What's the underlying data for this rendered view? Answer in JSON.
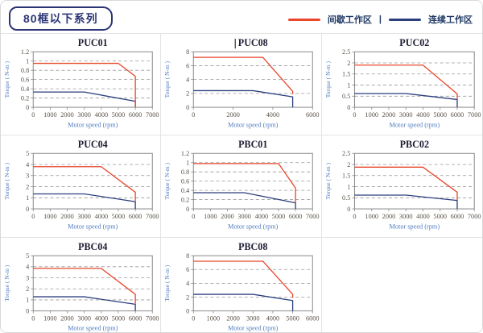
{
  "page": {
    "title": "80框以下系列"
  },
  "legend": {
    "items": [
      {
        "key": "intermittent-zone",
        "label": "间歇工作区",
        "color": "#e8472b"
      },
      {
        "key": "continuous-zone",
        "label": "连续工作区",
        "color": "#2b3f7e"
      }
    ],
    "separator": "|"
  },
  "colors": {
    "red_line": "#e8472b",
    "blue_line": "#2b3f7e",
    "plot_border": "#8a8a8a",
    "gridline": "#999999",
    "tick_text": "#5a5248",
    "axis_label_text": "#4f7cc0",
    "chart_title_text": "#1d1d33",
    "cell_divider": "#e4e4e4",
    "pill_navy": "#2b3575"
  },
  "chart_data": [
    {
      "type": "line",
      "title": "PUC01",
      "caret": false,
      "xlabel": "Motor speed (rpm)",
      "ylabel": "Torque ( N-m )",
      "xlim": [
        0,
        7000
      ],
      "ylim": [
        0,
        1.2
      ],
      "xticks": [
        0,
        1000,
        2000,
        3000,
        4000,
        5000,
        6000,
        7000
      ],
      "xtick_labels": [
        "0",
        "1000",
        "2000",
        "3000",
        "4000",
        "5000",
        "6000",
        "7000"
      ],
      "yticks": [
        0,
        0.2,
        0.4,
        0.6,
        0.8,
        1,
        1.2
      ],
      "ytick_labels": [
        "0",
        "0.2",
        "0.4",
        "0.6",
        "0.8",
        "1",
        "1.2"
      ],
      "series": [
        {
          "key": "intermittent-zone",
          "name": "间歇工作区",
          "color": "#e8472b",
          "points": [
            [
              0,
              0.95
            ],
            [
              5000,
              0.95
            ],
            [
              6000,
              0.67
            ],
            [
              6000,
              0
            ]
          ]
        },
        {
          "key": "continuous-zone",
          "name": "连续工作区",
          "color": "#2b3f7e",
          "points": [
            [
              0,
              0.33
            ],
            [
              3000,
              0.33
            ],
            [
              6000,
              0.13
            ],
            [
              6000,
              0
            ]
          ]
        }
      ]
    },
    {
      "type": "line",
      "title": "PUC08",
      "caret": true,
      "xlabel": "Motor speed (rpm)",
      "ylabel": "Torque ( N-m )",
      "xlim": [
        0,
        6000
      ],
      "ylim": [
        0,
        8
      ],
      "xticks": [
        0,
        2000,
        4000,
        6000
      ],
      "xtick_labels": [
        "0",
        "2000",
        "4000",
        "6000"
      ],
      "yticks": [
        0,
        2,
        4,
        6,
        8
      ],
      "ytick_labels": [
        "0",
        "2",
        "4",
        "6",
        "8"
      ],
      "series": [
        {
          "key": "intermittent-zone",
          "name": "间歇工作区",
          "color": "#e8472b",
          "points": [
            [
              0,
              7.2
            ],
            [
              3500,
              7.2
            ],
            [
              5000,
              2.3
            ],
            [
              5000,
              1.9
            ]
          ]
        },
        {
          "key": "continuous-zone",
          "name": "连续工作区",
          "color": "#2b3f7e",
          "points": [
            [
              0,
              2.4
            ],
            [
              3000,
              2.4
            ],
            [
              5000,
              1.5
            ],
            [
              5000,
              0
            ]
          ]
        }
      ]
    },
    {
      "type": "line",
      "title": "PUC02",
      "caret": false,
      "xlabel": "Motor speed (rpm)",
      "ylabel": "Torque ( N-m )",
      "xlim": [
        0,
        7000
      ],
      "ylim": [
        0,
        2.5
      ],
      "xticks": [
        0,
        1000,
        2000,
        3000,
        4000,
        5000,
        6000,
        7000
      ],
      "xtick_labels": [
        "0",
        "1000",
        "2000",
        "3000",
        "4000",
        "5000",
        "6000",
        "7000"
      ],
      "yticks": [
        0,
        0.5,
        1,
        1.5,
        2,
        2.5
      ],
      "ytick_labels": [
        "0",
        "0.5",
        "1",
        "1.5",
        "2",
        "2.5"
      ],
      "series": [
        {
          "key": "intermittent-zone",
          "name": "间歇工作区",
          "color": "#e8472b",
          "points": [
            [
              0,
              1.9
            ],
            [
              4000,
              1.9
            ],
            [
              6000,
              0.6
            ],
            [
              6000,
              0.35
            ]
          ]
        },
        {
          "key": "continuous-zone",
          "name": "连续工作区",
          "color": "#2b3f7e",
          "points": [
            [
              0,
              0.62
            ],
            [
              3000,
              0.62
            ],
            [
              6000,
              0.35
            ],
            [
              6000,
              0
            ]
          ]
        }
      ]
    },
    {
      "type": "line",
      "title": "PUC04",
      "caret": false,
      "xlabel": "Motor speed (rpm)",
      "ylabel": "Torque ( N-m )",
      "xlim": [
        0,
        7000
      ],
      "ylim": [
        0,
        5
      ],
      "xticks": [
        0,
        1000,
        2000,
        3000,
        4000,
        5000,
        6000,
        7000
      ],
      "xtick_labels": [
        "0",
        "1000",
        "2000",
        "3000",
        "4000",
        "5000",
        "6000",
        "7000"
      ],
      "yticks": [
        0,
        1,
        2,
        3,
        4,
        5
      ],
      "ytick_labels": [
        "0",
        "1",
        "2",
        "3",
        "4",
        "5"
      ],
      "series": [
        {
          "key": "intermittent-zone",
          "name": "间歇工作区",
          "color": "#e8472b",
          "points": [
            [
              0,
              3.8
            ],
            [
              4000,
              3.8
            ],
            [
              6000,
              1.5
            ],
            [
              6000,
              0.7
            ]
          ]
        },
        {
          "key": "continuous-zone",
          "name": "连续工作区",
          "color": "#2b3f7e",
          "points": [
            [
              0,
              1.35
            ],
            [
              3000,
              1.35
            ],
            [
              6000,
              0.65
            ],
            [
              6000,
              0
            ]
          ]
        }
      ]
    },
    {
      "type": "line",
      "title": "PBC01",
      "caret": false,
      "xlabel": "Motor speed (rpm)",
      "ylabel": "Torque ( N-m )",
      "xlim": [
        0,
        7000
      ],
      "ylim": [
        0,
        1.2
      ],
      "xticks": [
        0,
        1000,
        2000,
        3000,
        4000,
        5000,
        6000,
        7000
      ],
      "xtick_labels": [
        "0",
        "1000",
        "2000",
        "3000",
        "4000",
        "5000",
        "6000",
        "7000"
      ],
      "yticks": [
        0,
        0.2,
        0.4,
        0.6,
        0.8,
        1,
        1.2
      ],
      "ytick_labels": [
        "0",
        "0.2",
        "0.4",
        "0.6",
        "0.8",
        "1",
        "1.2"
      ],
      "series": [
        {
          "key": "intermittent-zone",
          "name": "间歇工作区",
          "color": "#e8472b",
          "points": [
            [
              0,
              0.98
            ],
            [
              5000,
              0.98
            ],
            [
              6000,
              0.45
            ],
            [
              6000,
              0.13
            ]
          ]
        },
        {
          "key": "continuous-zone",
          "name": "连续工作区",
          "color": "#2b3f7e",
          "points": [
            [
              0,
              0.35
            ],
            [
              3000,
              0.35
            ],
            [
              6000,
              0.13
            ],
            [
              6000,
              0
            ]
          ]
        }
      ]
    },
    {
      "type": "line",
      "title": "PBC02",
      "caret": false,
      "xlabel": "Motor speed (rpm)",
      "ylabel": "Torque ( N-m )",
      "xlim": [
        0,
        7000
      ],
      "ylim": [
        0,
        2.5
      ],
      "xticks": [
        0,
        1000,
        2000,
        3000,
        4000,
        5000,
        6000,
        7000
      ],
      "xtick_labels": [
        "0",
        "1000",
        "2000",
        "3000",
        "4000",
        "5000",
        "6000",
        "7000"
      ],
      "yticks": [
        0,
        0.5,
        1,
        1.5,
        2,
        2.5
      ],
      "ytick_labels": [
        "0",
        "0.5",
        "1",
        "1.5",
        "2",
        "2.5"
      ],
      "series": [
        {
          "key": "intermittent-zone",
          "name": "间歇工作区",
          "color": "#e8472b",
          "points": [
            [
              0,
              1.88
            ],
            [
              4000,
              1.88
            ],
            [
              6000,
              0.75
            ],
            [
              6000,
              0.4
            ]
          ]
        },
        {
          "key": "continuous-zone",
          "name": "连续工作区",
          "color": "#2b3f7e",
          "points": [
            [
              0,
              0.62
            ],
            [
              3000,
              0.62
            ],
            [
              6000,
              0.38
            ],
            [
              6000,
              0
            ]
          ]
        }
      ]
    },
    {
      "type": "line",
      "title": "PBC04",
      "caret": false,
      "xlabel": "Motor speed (rpm)",
      "ylabel": "Torque ( N-m )",
      "xlim": [
        0,
        7000
      ],
      "ylim": [
        0,
        5
      ],
      "xticks": [
        0,
        1000,
        2000,
        3000,
        4000,
        5000,
        6000,
        7000
      ],
      "xtick_labels": [
        "0",
        "1000",
        "2000",
        "3000",
        "4000",
        "5000",
        "6000",
        "7000"
      ],
      "yticks": [
        0,
        1,
        2,
        3,
        4,
        5
      ],
      "ytick_labels": [
        "0",
        "1",
        "2",
        "3",
        "4",
        "5"
      ],
      "series": [
        {
          "key": "intermittent-zone",
          "name": "间歇工作区",
          "color": "#e8472b",
          "points": [
            [
              0,
              3.85
            ],
            [
              4000,
              3.85
            ],
            [
              6000,
              1.5
            ],
            [
              6000,
              0.65
            ]
          ]
        },
        {
          "key": "continuous-zone",
          "name": "连续工作区",
          "color": "#2b3f7e",
          "points": [
            [
              0,
              1.28
            ],
            [
              3000,
              1.28
            ],
            [
              6000,
              0.6
            ],
            [
              6000,
              0
            ]
          ]
        }
      ]
    },
    {
      "type": "line",
      "title": "PBC08",
      "caret": false,
      "xlabel": "Motor speed (rpm)",
      "ylabel": "Torque ( N-m )",
      "xlim": [
        0,
        6000
      ],
      "ylim": [
        0,
        8
      ],
      "xticks": [
        0,
        1000,
        2000,
        3000,
        4000,
        5000,
        6000
      ],
      "xtick_labels": [
        "0",
        "1000",
        "2000",
        "3000",
        "4000",
        "5000",
        "6000"
      ],
      "yticks": [
        0,
        2,
        4,
        6,
        8
      ],
      "ytick_labels": [
        "0",
        "2",
        "4",
        "6",
        "8"
      ],
      "series": [
        {
          "key": "intermittent-zone",
          "name": "间歇工作区",
          "color": "#e8472b",
          "points": [
            [
              0,
              7.2
            ],
            [
              3500,
              7.2
            ],
            [
              5000,
              2.4
            ],
            [
              5000,
              1.9
            ]
          ]
        },
        {
          "key": "continuous-zone",
          "name": "连续工作区",
          "color": "#2b3f7e",
          "points": [
            [
              0,
              2.4
            ],
            [
              3000,
              2.4
            ],
            [
              5000,
              1.5
            ],
            [
              5000,
              0
            ]
          ]
        }
      ]
    }
  ]
}
